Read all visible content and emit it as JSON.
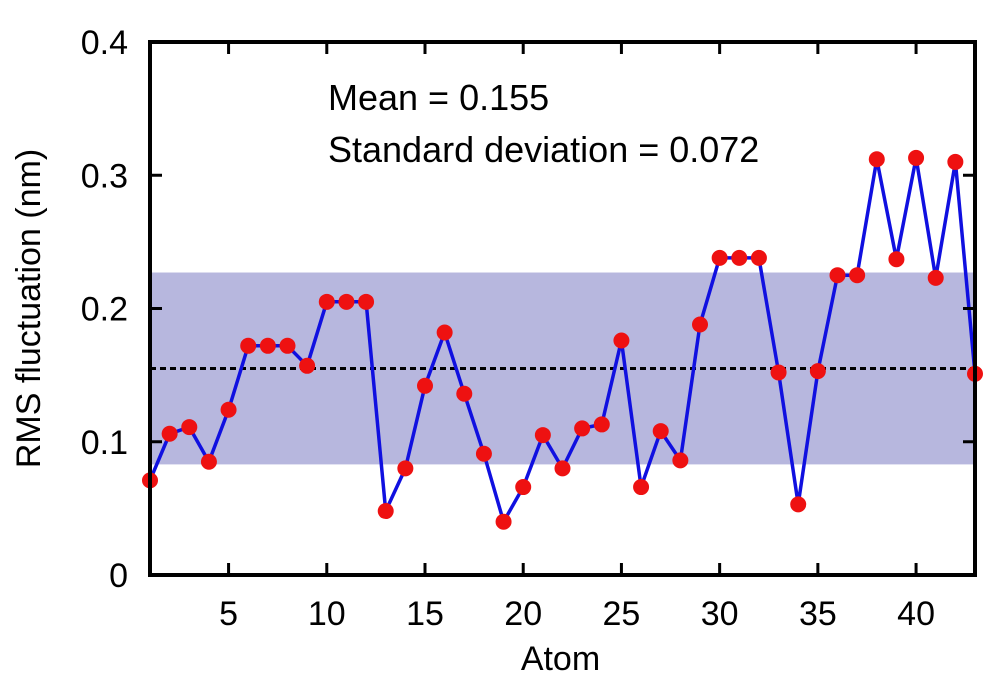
{
  "chart_data": {
    "type": "line",
    "xlabel": "Atom",
    "ylabel": "RMS fluctuation (nm)",
    "xlim": [
      1,
      43
    ],
    "ylim": [
      0,
      0.4
    ],
    "xticks": [
      5,
      10,
      15,
      20,
      25,
      30,
      35,
      40
    ],
    "yticks": [
      "0",
      "0.1",
      "0.2",
      "0.3",
      "0.4"
    ],
    "grid": false,
    "annotations": [
      "Mean = 0.155",
      "Standard deviation = 0.072"
    ],
    "mean": 0.155,
    "std": 0.072,
    "series": [
      {
        "x": [
          1,
          2,
          3,
          4,
          5,
          6,
          7,
          8,
          9,
          10,
          11,
          12,
          13,
          14,
          15,
          16,
          17,
          18,
          19,
          20,
          21,
          22,
          23,
          24,
          25,
          26,
          27,
          28,
          29,
          30,
          31,
          32,
          33,
          34,
          35,
          36,
          37,
          38,
          39,
          40,
          41,
          42,
          43
        ],
        "values": [
          0.071,
          0.106,
          0.111,
          0.085,
          0.124,
          0.172,
          0.172,
          0.172,
          0.157,
          0.205,
          0.205,
          0.205,
          0.048,
          0.08,
          0.142,
          0.182,
          0.136,
          0.091,
          0.04,
          0.066,
          0.105,
          0.08,
          0.11,
          0.113,
          0.176,
          0.066,
          0.108,
          0.086,
          0.188,
          0.238,
          0.238,
          0.238,
          0.152,
          0.053,
          0.153,
          0.225,
          0.225,
          0.312,
          0.237,
          0.313,
          0.223,
          0.31,
          0.151
        ]
      }
    ],
    "colors": {
      "line": "#1010e0",
      "marker": "#ee1111",
      "band": "#b7b7de",
      "mean_line": "#000000"
    }
  }
}
